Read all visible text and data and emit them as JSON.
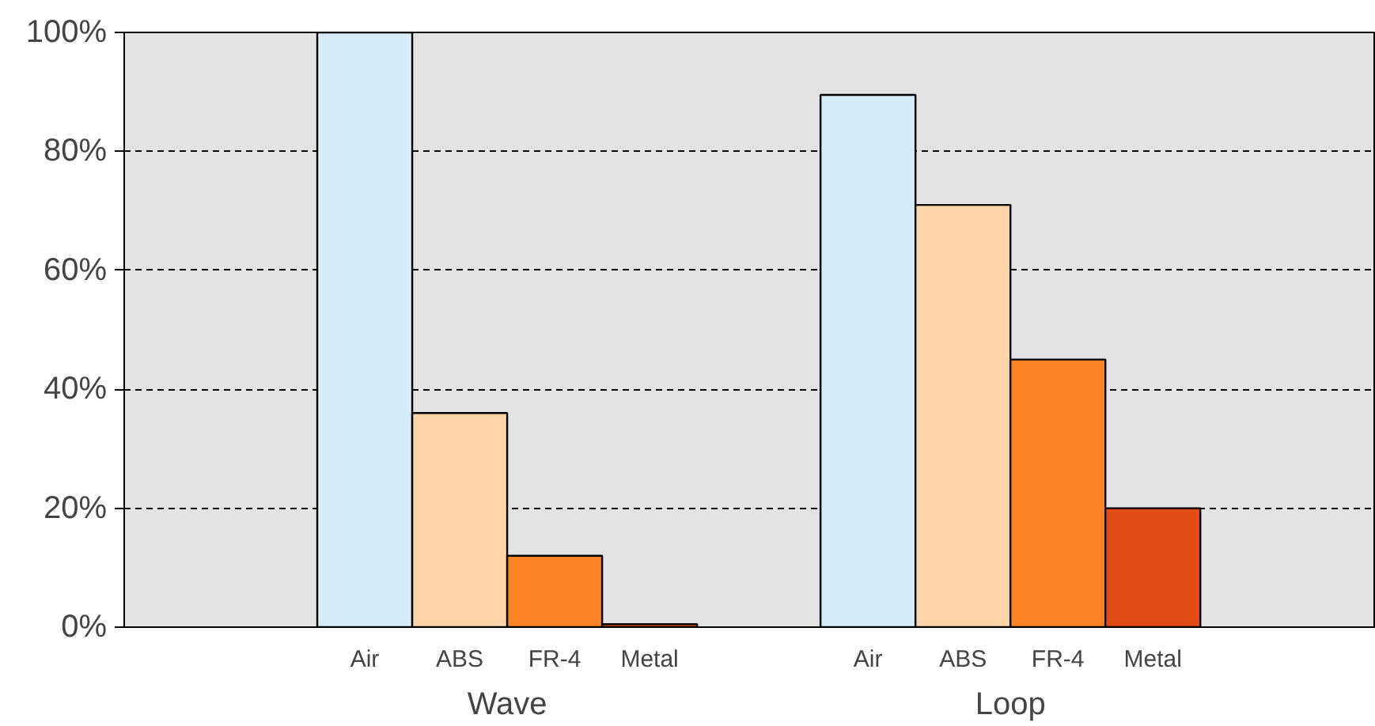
{
  "chart_data": {
    "type": "bar",
    "categories": [
      "Wave",
      "Loop"
    ],
    "series": [
      {
        "name": "Air",
        "color": "#d6ecfa",
        "values": [
          100,
          89.5
        ]
      },
      {
        "name": "ABS",
        "color": "#fed4a8",
        "values": [
          36,
          71
        ]
      },
      {
        "name": "FR-4",
        "color": "#fd8324",
        "values": [
          12,
          45
        ]
      },
      {
        "name": "Metal",
        "color": "#e04c14",
        "values": [
          0.5,
          20
        ]
      }
    ],
    "ylim": [
      0,
      100
    ],
    "yticks": [
      {
        "value": 0,
        "label": "0%"
      },
      {
        "value": 20,
        "label": "20%"
      },
      {
        "value": 40,
        "label": "40%"
      },
      {
        "value": 60,
        "label": "60%"
      },
      {
        "value": 80,
        "label": "80%"
      },
      {
        "value": 100,
        "label": "100%"
      }
    ],
    "grid": "y"
  }
}
